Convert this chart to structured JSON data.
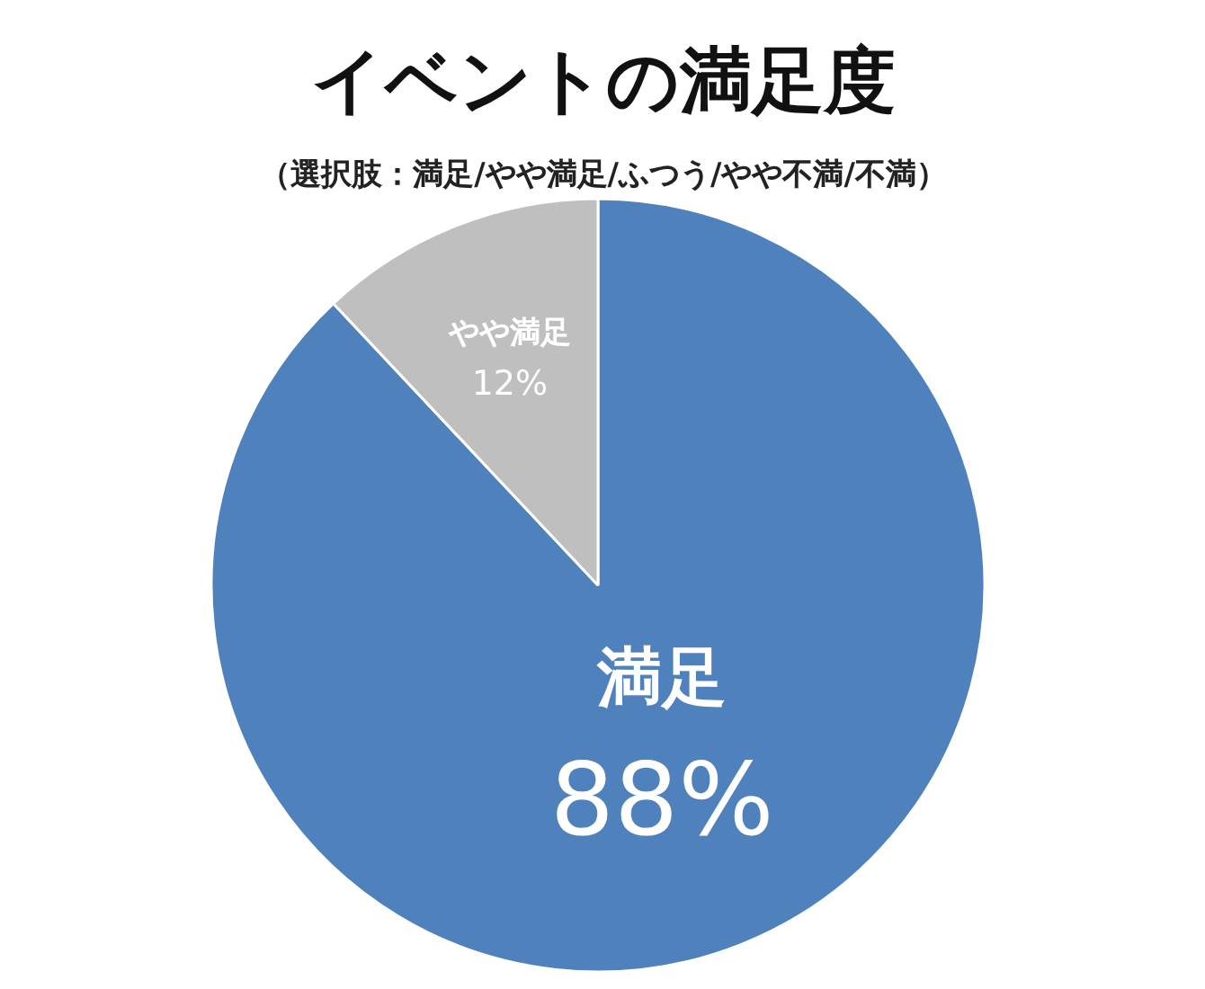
{
  "chart_data": {
    "type": "pie",
    "title": "イベントの満足度",
    "subtitle": "（選択肢：満足/やや満足/ふつう/やや不満/不満）",
    "categories": [
      "満足",
      "やや満足"
    ],
    "values": [
      88,
      12
    ],
    "colors": [
      "#4f81bd",
      "#bfbfbf"
    ],
    "value_labels": [
      "88%",
      "12%"
    ]
  }
}
